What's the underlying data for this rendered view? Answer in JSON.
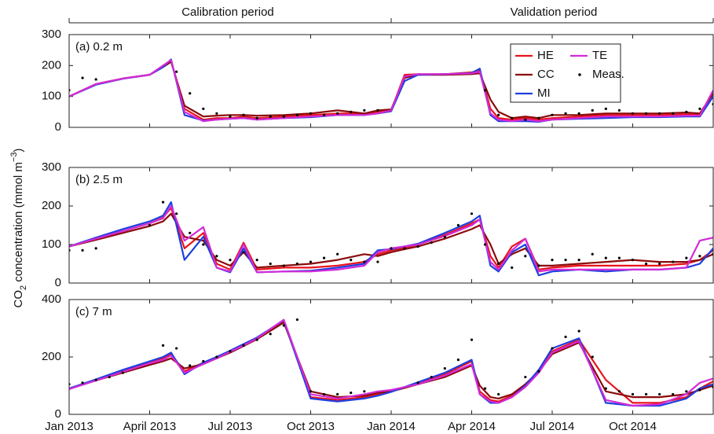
{
  "ylabel_parts": [
    "CO",
    "2",
    " concentration (mmol m",
    "−3",
    ")"
  ],
  "periods": [
    "Calibration period",
    "Validation period"
  ],
  "chart_data": [
    {
      "type": "line",
      "panel_label": "(a) 0.2 m",
      "legend": "upper right",
      "x": [
        0,
        1,
        2,
        3,
        3.5,
        3.8,
        4.3,
        5,
        5.5,
        6,
        6.5,
        7,
        8,
        9,
        10,
        11,
        11.5,
        12,
        12.5,
        13,
        14,
        15,
        15.3,
        15.7,
        16,
        16.5,
        17,
        17.5,
        18,
        19,
        20,
        21,
        22,
        23,
        23.5,
        24
      ],
      "xlim": [
        0,
        24
      ],
      "ylim": [
        0,
        300
      ],
      "yticks": [
        0,
        100,
        200,
        300
      ],
      "series": [
        {
          "name": "HE",
          "color": "#e8141c",
          "values": [
            100,
            140,
            158,
            170,
            195,
            215,
            60,
            25,
            30,
            30,
            35,
            30,
            35,
            40,
            45,
            45,
            50,
            55,
            170,
            172,
            172,
            178,
            185,
            60,
            30,
            25,
            30,
            25,
            30,
            35,
            40,
            40,
            40,
            42,
            40,
            115
          ]
        },
        {
          "name": "CC",
          "color": "#8b0a0a",
          "values": [
            100,
            140,
            158,
            170,
            195,
            212,
            70,
            35,
            38,
            40,
            40,
            38,
            40,
            45,
            55,
            45,
            55,
            58,
            160,
            170,
            170,
            172,
            175,
            90,
            50,
            30,
            35,
            30,
            40,
            40,
            45,
            45,
            45,
            48,
            45,
            110
          ]
        },
        {
          "name": "MI",
          "color": "#1f3fdf",
          "values": [
            100,
            138,
            157,
            170,
            195,
            220,
            40,
            22,
            25,
            28,
            30,
            25,
            30,
            33,
            40,
            40,
            45,
            52,
            150,
            170,
            172,
            176,
            190,
            40,
            20,
            20,
            20,
            18,
            25,
            28,
            30,
            33,
            33,
            35,
            35,
            100
          ]
        },
        {
          "name": "TE",
          "color": "#d42ad8",
          "values": [
            100,
            140,
            158,
            170,
            200,
            218,
            50,
            20,
            25,
            28,
            30,
            25,
            30,
            35,
            40,
            40,
            45,
            55,
            165,
            172,
            172,
            175,
            180,
            45,
            25,
            20,
            25,
            20,
            25,
            30,
            35,
            35,
            35,
            38,
            38,
            120
          ]
        },
        {
          "name": "Meas.",
          "color": "#000000",
          "style": "dots",
          "x": [
            0,
            0.5,
            1,
            1.5,
            2,
            2.5,
            3,
            3.5,
            4,
            4.5,
            5,
            5.5,
            6,
            6.5,
            7,
            7.5,
            8,
            8.5,
            9,
            9.5,
            10,
            10.5,
            11,
            11.5,
            12,
            12.5,
            13,
            13.5,
            14,
            14.5,
            15,
            15.5,
            16,
            16.5,
            17,
            17.5,
            18,
            18.5,
            19,
            19.5,
            20,
            20.5,
            21,
            21.5,
            22,
            22.5,
            23,
            23.5,
            24
          ],
          "values": [
            120,
            160,
            155,
            null,
            null,
            null,
            null,
            null,
            180,
            110,
            60,
            45,
            35,
            40,
            30,
            35,
            35,
            40,
            45,
            40,
            45,
            50,
            55,
            55,
            null,
            null,
            null,
            null,
            null,
            null,
            null,
            120,
            40,
            30,
            25,
            30,
            40,
            45,
            45,
            55,
            60,
            55,
            45,
            45,
            45,
            45,
            50,
            60,
            75
          ]
        }
      ]
    },
    {
      "type": "line",
      "panel_label": "(b) 2.5 m",
      "x": [
        0,
        1,
        2,
        3,
        3.5,
        3.8,
        4.3,
        5,
        5.5,
        6,
        6.5,
        7,
        8,
        9,
        10,
        11,
        11.5,
        12,
        12.5,
        13,
        14,
        15,
        15.3,
        15.7,
        16,
        16.5,
        17,
        17.5,
        18,
        19,
        20,
        21,
        22,
        23,
        23.5,
        24
      ],
      "xlim": [
        0,
        24
      ],
      "ylim": [
        0,
        300
      ],
      "yticks": [
        0,
        100,
        200,
        300
      ],
      "series": [
        {
          "color": "#e8141c",
          "values": [
            95,
            115,
            135,
            155,
            170,
            195,
            90,
            130,
            50,
            35,
            105,
            35,
            40,
            40,
            45,
            55,
            75,
            85,
            92,
            100,
            125,
            155,
            165,
            70,
            40,
            95,
            115,
            35,
            40,
            45,
            45,
            45,
            45,
            50,
            60,
            85
          ]
        },
        {
          "color": "#8b0a0a",
          "values": [
            95,
            112,
            130,
            148,
            160,
            180,
            120,
            110,
            60,
            45,
            80,
            40,
            45,
            50,
            60,
            75,
            70,
            80,
            88,
            95,
            115,
            140,
            150,
            100,
            50,
            75,
            90,
            45,
            45,
            50,
            55,
            60,
            55,
            55,
            60,
            75
          ]
        },
        {
          "color": "#1f3fdf",
          "values": [
            95,
            118,
            140,
            160,
            175,
            210,
            60,
            120,
            40,
            28,
            90,
            28,
            30,
            32,
            40,
            50,
            85,
            88,
            95,
            102,
            130,
            160,
            175,
            45,
            30,
            80,
            100,
            20,
            30,
            35,
            30,
            35,
            35,
            40,
            50,
            90
          ]
        },
        {
          "color": "#d42ad8",
          "values": [
            95,
            115,
            135,
            155,
            168,
            200,
            110,
            145,
            40,
            30,
            100,
            28,
            30,
            30,
            35,
            45,
            80,
            90,
            95,
            100,
            122,
            150,
            165,
            55,
            35,
            85,
            115,
            30,
            35,
            35,
            35,
            35,
            35,
            40,
            110,
            118
          ]
        },
        {
          "color": "#000000",
          "style": "dots",
          "x": [
            0,
            0.5,
            1,
            1.5,
            2,
            2.5,
            3,
            3.5,
            4,
            4.5,
            5,
            5.5,
            6,
            6.5,
            7,
            7.5,
            8,
            8.5,
            9,
            9.5,
            10,
            10.5,
            11,
            11.5,
            12,
            12.5,
            13,
            13.5,
            14,
            14.5,
            15,
            15.5,
            16,
            16.5,
            17,
            17.5,
            18,
            18.5,
            19,
            19.5,
            20,
            20.5,
            21,
            21.5,
            22,
            22.5,
            23,
            23.5,
            24
          ],
          "values": [
            85,
            85,
            90,
            null,
            null,
            null,
            150,
            210,
            180,
            130,
            100,
            70,
            60,
            80,
            60,
            50,
            45,
            50,
            55,
            65,
            75,
            60,
            55,
            55,
            90,
            90,
            95,
            105,
            120,
            150,
            180,
            100,
            50,
            40,
            70,
            45,
            60,
            60,
            60,
            75,
            65,
            65,
            60,
            50,
            50,
            55,
            65,
            70,
            75
          ]
        }
      ]
    },
    {
      "type": "line",
      "panel_label": "(c) 7 m",
      "x": [
        0,
        1,
        2,
        3,
        3.5,
        3.8,
        4.3,
        5,
        5.5,
        6,
        6.5,
        7,
        8,
        9,
        10,
        11,
        11.5,
        12,
        12.5,
        13,
        14,
        15,
        15.3,
        15.7,
        16,
        16.5,
        17,
        17.5,
        18,
        19,
        20,
        21,
        22,
        23,
        23.5,
        24
      ],
      "xlim": [
        0,
        24
      ],
      "ylim": [
        0,
        400
      ],
      "yticks": [
        0,
        200,
        400
      ],
      "xticks": [
        {
          "value": 0,
          "label": "Jan 2013"
        },
        {
          "value": 3,
          "label": "April 2013"
        },
        {
          "value": 6,
          "label": "Jul 2013"
        },
        {
          "value": 9,
          "label": "Oct 2013"
        },
        {
          "value": 12,
          "label": "Jan 2014"
        },
        {
          "value": 15,
          "label": "Apr 2014"
        },
        {
          "value": 18,
          "label": "Jul 2014"
        },
        {
          "value": 21,
          "label": "Oct 2014"
        }
      ],
      "series": [
        {
          "color": "#e8141c",
          "values": [
            90,
            120,
            150,
            180,
            195,
            210,
            150,
            180,
            200,
            220,
            240,
            265,
            325,
            60,
            50,
            60,
            70,
            80,
            95,
            110,
            140,
            185,
            80,
            50,
            45,
            65,
            100,
            150,
            220,
            260,
            120,
            40,
            40,
            60,
            90,
            115
          ]
        },
        {
          "color": "#8b0a0a",
          "values": [
            90,
            118,
            145,
            172,
            185,
            195,
            160,
            175,
            195,
            215,
            238,
            262,
            320,
            80,
            60,
            65,
            75,
            80,
            92,
            105,
            130,
            170,
            100,
            60,
            55,
            70,
            105,
            150,
            210,
            250,
            80,
            60,
            60,
            70,
            85,
            100
          ]
        },
        {
          "color": "#1f3fdf",
          "values": [
            90,
            122,
            155,
            185,
            200,
            215,
            140,
            180,
            200,
            222,
            245,
            268,
            328,
            55,
            45,
            55,
            65,
            78,
            95,
            112,
            145,
            190,
            70,
            40,
            40,
            60,
            100,
            155,
            230,
            265,
            40,
            30,
            30,
            55,
            90,
            105
          ]
        },
        {
          "color": "#d42ad8",
          "values": [
            88,
            118,
            148,
            178,
            190,
            205,
            145,
            175,
            195,
            218,
            240,
            265,
            330,
            70,
            55,
            70,
            80,
            85,
            95,
            105,
            135,
            175,
            70,
            45,
            40,
            60,
            95,
            145,
            215,
            255,
            50,
            30,
            35,
            70,
            110,
            125
          ]
        },
        {
          "color": "#000000",
          "style": "dots",
          "x": [
            0,
            0.5,
            1,
            1.5,
            2,
            2.5,
            3,
            3.5,
            4,
            4.5,
            5,
            5.5,
            6,
            6.5,
            7,
            7.5,
            8,
            8.5,
            9,
            9.5,
            10,
            10.5,
            11,
            11.5,
            12,
            12.5,
            13,
            13.5,
            14,
            14.5,
            15,
            15.5,
            16,
            16.5,
            17,
            17.5,
            18,
            18.5,
            19,
            19.5,
            20,
            20.5,
            21,
            21.5,
            22,
            22.5,
            23,
            23.5,
            24
          ],
          "values": [
            105,
            110,
            120,
            130,
            145,
            null,
            null,
            240,
            230,
            170,
            185,
            200,
            220,
            240,
            260,
            280,
            310,
            330,
            80,
            70,
            70,
            75,
            80,
            null,
            null,
            null,
            110,
            130,
            160,
            190,
            260,
            90,
            70,
            null,
            130,
            150,
            230,
            270,
            290,
            200,
            90,
            80,
            70,
            70,
            70,
            70,
            80,
            85,
            95
          ]
        }
      ]
    }
  ]
}
